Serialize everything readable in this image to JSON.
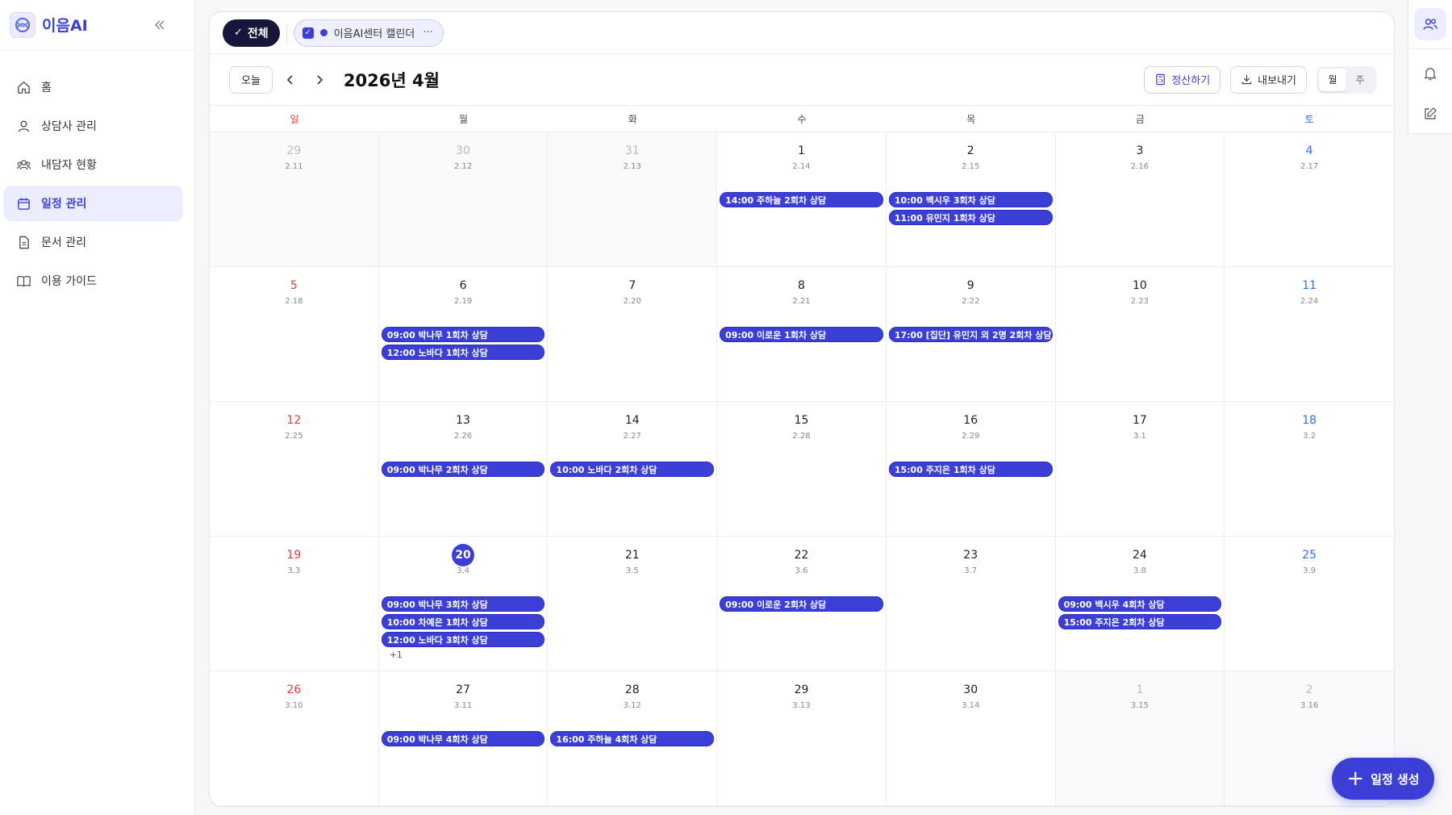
{
  "app": {
    "name": "이음AI"
  },
  "colors": {
    "accent": "#3b3fd6",
    "sunday": "#e03a3a",
    "saturday": "#2f6fe4"
  },
  "sidebar": {
    "items": [
      {
        "label": "홈",
        "icon": "home-icon"
      },
      {
        "label": "상담사 관리",
        "icon": "user-icon"
      },
      {
        "label": "내담자 현황",
        "icon": "users-icon"
      },
      {
        "label": "일정 관리",
        "icon": "calendar-icon",
        "active": true
      },
      {
        "label": "문서 관리",
        "icon": "document-icon"
      },
      {
        "label": "이용 가이드",
        "icon": "book-icon"
      }
    ]
  },
  "filters": {
    "all_label": "전체",
    "calendar_label": "이음AI센터 캘린더",
    "more_label": "···"
  },
  "toolbar": {
    "today_label": "오늘",
    "month_title": "2026년 4월",
    "settle_label": "정산하기",
    "export_label": "내보내기",
    "view_month": "월",
    "view_week": "주",
    "active_view": "월"
  },
  "weekdays": [
    "일",
    "월",
    "화",
    "수",
    "목",
    "금",
    "토"
  ],
  "weeks": [
    [
      {
        "day": "29",
        "lunar": "2.11",
        "outside": true,
        "events": []
      },
      {
        "day": "30",
        "lunar": "2.12",
        "outside": true,
        "events": []
      },
      {
        "day": "31",
        "lunar": "2.13",
        "outside": true,
        "events": []
      },
      {
        "day": "1",
        "lunar": "2.14",
        "events": [
          "14:00 주하늘 2회차 상담"
        ]
      },
      {
        "day": "2",
        "lunar": "2.15",
        "events": [
          "10:00 백시우 3회차 상담",
          "11:00 유민지 1회차 상담"
        ]
      },
      {
        "day": "3",
        "lunar": "2.16",
        "events": []
      },
      {
        "day": "4",
        "lunar": "2.17",
        "events": []
      }
    ],
    [
      {
        "day": "5",
        "lunar": "2.18",
        "events": []
      },
      {
        "day": "6",
        "lunar": "2.19",
        "events": [
          "09:00 박나무 1회차 상담",
          "12:00 노바다 1회차 상담"
        ]
      },
      {
        "day": "7",
        "lunar": "2.20",
        "events": []
      },
      {
        "day": "8",
        "lunar": "2.21",
        "events": [
          "09:00 이로운 1회차 상담"
        ]
      },
      {
        "day": "9",
        "lunar": "2.22",
        "events": [
          "17:00 [집단] 유민지 외 2명 2회차 상담"
        ]
      },
      {
        "day": "10",
        "lunar": "2.23",
        "events": []
      },
      {
        "day": "11",
        "lunar": "2.24",
        "events": []
      }
    ],
    [
      {
        "day": "12",
        "lunar": "2.25",
        "events": []
      },
      {
        "day": "13",
        "lunar": "2.26",
        "events": [
          "09:00 박나무 2회차 상담"
        ]
      },
      {
        "day": "14",
        "lunar": "2.27",
        "events": [
          "10:00 노바다 2회차 상담"
        ]
      },
      {
        "day": "15",
        "lunar": "2.28",
        "events": []
      },
      {
        "day": "16",
        "lunar": "2.29",
        "events": [
          "15:00 주지은 1회차 상담"
        ]
      },
      {
        "day": "17",
        "lunar": "3.1",
        "events": []
      },
      {
        "day": "18",
        "lunar": "3.2",
        "events": []
      }
    ],
    [
      {
        "day": "19",
        "lunar": "3.3",
        "events": []
      },
      {
        "day": "20",
        "lunar": "3.4",
        "today": true,
        "events": [
          "09:00 박나무 3회차 상담",
          "10:00 차예은 1회차 상담",
          "12:00 노바다 3회차 상담"
        ],
        "more": "+1"
      },
      {
        "day": "21",
        "lunar": "3.5",
        "events": []
      },
      {
        "day": "22",
        "lunar": "3.6",
        "events": [
          "09:00 이로운 2회차 상담"
        ]
      },
      {
        "day": "23",
        "lunar": "3.7",
        "events": []
      },
      {
        "day": "24",
        "lunar": "3.8",
        "events": [
          "09:00 백시우 4회차 상담",
          "15:00 주지은 2회차 상담"
        ]
      },
      {
        "day": "25",
        "lunar": "3.9",
        "events": []
      }
    ],
    [
      {
        "day": "26",
        "lunar": "3.10",
        "events": []
      },
      {
        "day": "27",
        "lunar": "3.11",
        "events": [
          "09:00 박나무 4회차 상담"
        ]
      },
      {
        "day": "28",
        "lunar": "3.12",
        "events": [
          "16:00 주하늘 4회차 상담"
        ]
      },
      {
        "day": "29",
        "lunar": "3.13",
        "events": []
      },
      {
        "day": "30",
        "lunar": "3.14",
        "events": []
      },
      {
        "day": "1",
        "lunar": "3.15",
        "outside": true,
        "events": []
      },
      {
        "day": "2",
        "lunar": "3.16",
        "outside": true,
        "events": []
      }
    ]
  ],
  "fab": {
    "label": "일정 생성"
  }
}
